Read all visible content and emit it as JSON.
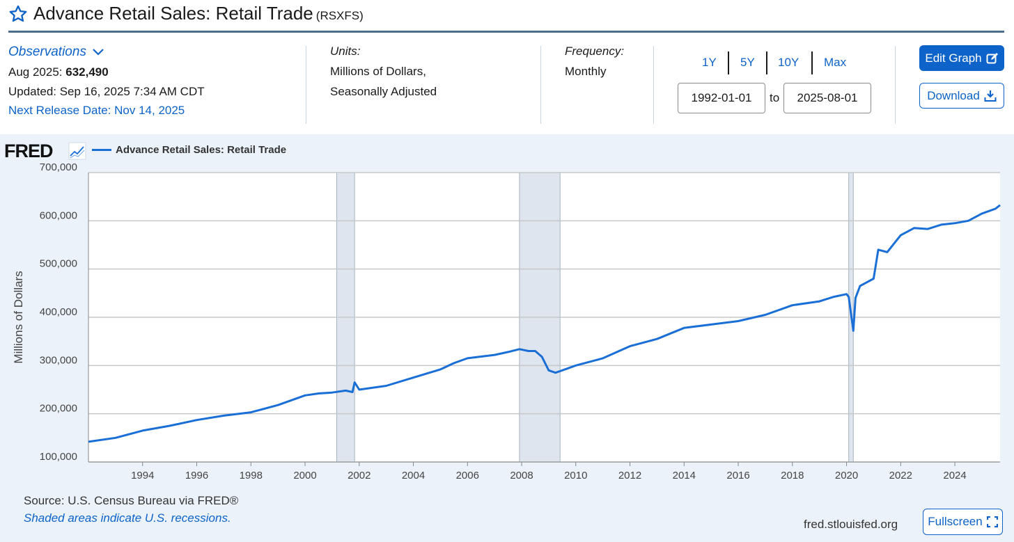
{
  "header": {
    "title": "Advance Retail Sales: Retail Trade",
    "series_code": "(RSXFS)"
  },
  "observations": {
    "label": "Observations",
    "latest_label": "Aug 2025:",
    "latest_value": "632,490",
    "updated": "Updated: Sep 16, 2025 7:34 AM CDT",
    "next_release": "Next Release Date: Nov 14, 2025"
  },
  "units": {
    "label": "Units:",
    "line1": "Millions of Dollars,",
    "line2": "Seasonally Adjusted"
  },
  "frequency": {
    "label": "Frequency:",
    "value": "Monthly"
  },
  "range": {
    "buttons": [
      "1Y",
      "5Y",
      "10Y",
      "Max"
    ],
    "start": "1992-01-01",
    "to_label": "to",
    "end": "2025-08-01"
  },
  "actions": {
    "edit_label": "Edit Graph",
    "download_label": "Download",
    "fullscreen_label": "Fullscreen"
  },
  "footer": {
    "source": "Source: U.S. Census Bureau via FRED®",
    "shaded_note": "Shaded areas indicate U.S. recessions.",
    "site": "fred.stlouisfed.org"
  },
  "logo_text": "FRED",
  "colors": {
    "accent": "#0d63c9",
    "line": "#1a6fd6",
    "recession": "#dfe5ee",
    "chart_bg": "#ebf2fa"
  },
  "chart_data": {
    "type": "line",
    "title": "Advance Retail Sales: Retail Trade",
    "legend": [
      "Advance Retail Sales: Retail Trade"
    ],
    "ylabel": "Millions of Dollars",
    "xlabel": "",
    "ylim": [
      100000,
      700000
    ],
    "xlim": [
      1992.0,
      2025.67
    ],
    "y_ticks": [
      100000,
      200000,
      300000,
      400000,
      500000,
      600000,
      700000
    ],
    "y_tick_labels": [
      "100,000",
      "200,000",
      "300,000",
      "400,000",
      "500,000",
      "600,000",
      "700,000"
    ],
    "x_ticks": [
      1994,
      1996,
      1998,
      2000,
      2002,
      2004,
      2006,
      2008,
      2010,
      2012,
      2014,
      2016,
      2018,
      2020,
      2022,
      2024
    ],
    "recessions": [
      [
        2001.17,
        2001.83
      ],
      [
        2007.92,
        2009.42
      ],
      [
        2020.08,
        2020.25
      ]
    ],
    "series": [
      {
        "name": "Advance Retail Sales: Retail Trade",
        "x": [
          1992.0,
          1993.0,
          1994.0,
          1995.0,
          1996.0,
          1997.0,
          1998.0,
          1999.0,
          2000.0,
          2000.5,
          2001.0,
          2001.5,
          2001.75,
          2001.83,
          2002.0,
          2003.0,
          2004.0,
          2005.0,
          2005.5,
          2006.0,
          2007.0,
          2007.5,
          2007.92,
          2008.25,
          2008.5,
          2008.75,
          2009.0,
          2009.25,
          2009.5,
          2010.0,
          2011.0,
          2012.0,
          2013.0,
          2014.0,
          2015.0,
          2016.0,
          2017.0,
          2018.0,
          2019.0,
          2019.5,
          2020.0,
          2020.08,
          2020.25,
          2020.33,
          2020.5,
          2021.0,
          2021.17,
          2021.5,
          2022.0,
          2022.5,
          2023.0,
          2023.5,
          2024.0,
          2024.5,
          2025.0,
          2025.5,
          2025.67
        ],
        "values": [
          142000,
          150000,
          165000,
          175000,
          187000,
          196000,
          203000,
          218000,
          238000,
          242000,
          244000,
          248000,
          245000,
          265000,
          250000,
          258000,
          275000,
          292000,
          305000,
          315000,
          322000,
          328000,
          334000,
          330000,
          330000,
          318000,
          290000,
          285000,
          290000,
          300000,
          315000,
          340000,
          355000,
          378000,
          385000,
          392000,
          405000,
          425000,
          433000,
          442000,
          448000,
          442000,
          372000,
          440000,
          465000,
          480000,
          540000,
          535000,
          570000,
          585000,
          583000,
          592000,
          595000,
          600000,
          615000,
          625000,
          632490
        ]
      }
    ]
  }
}
